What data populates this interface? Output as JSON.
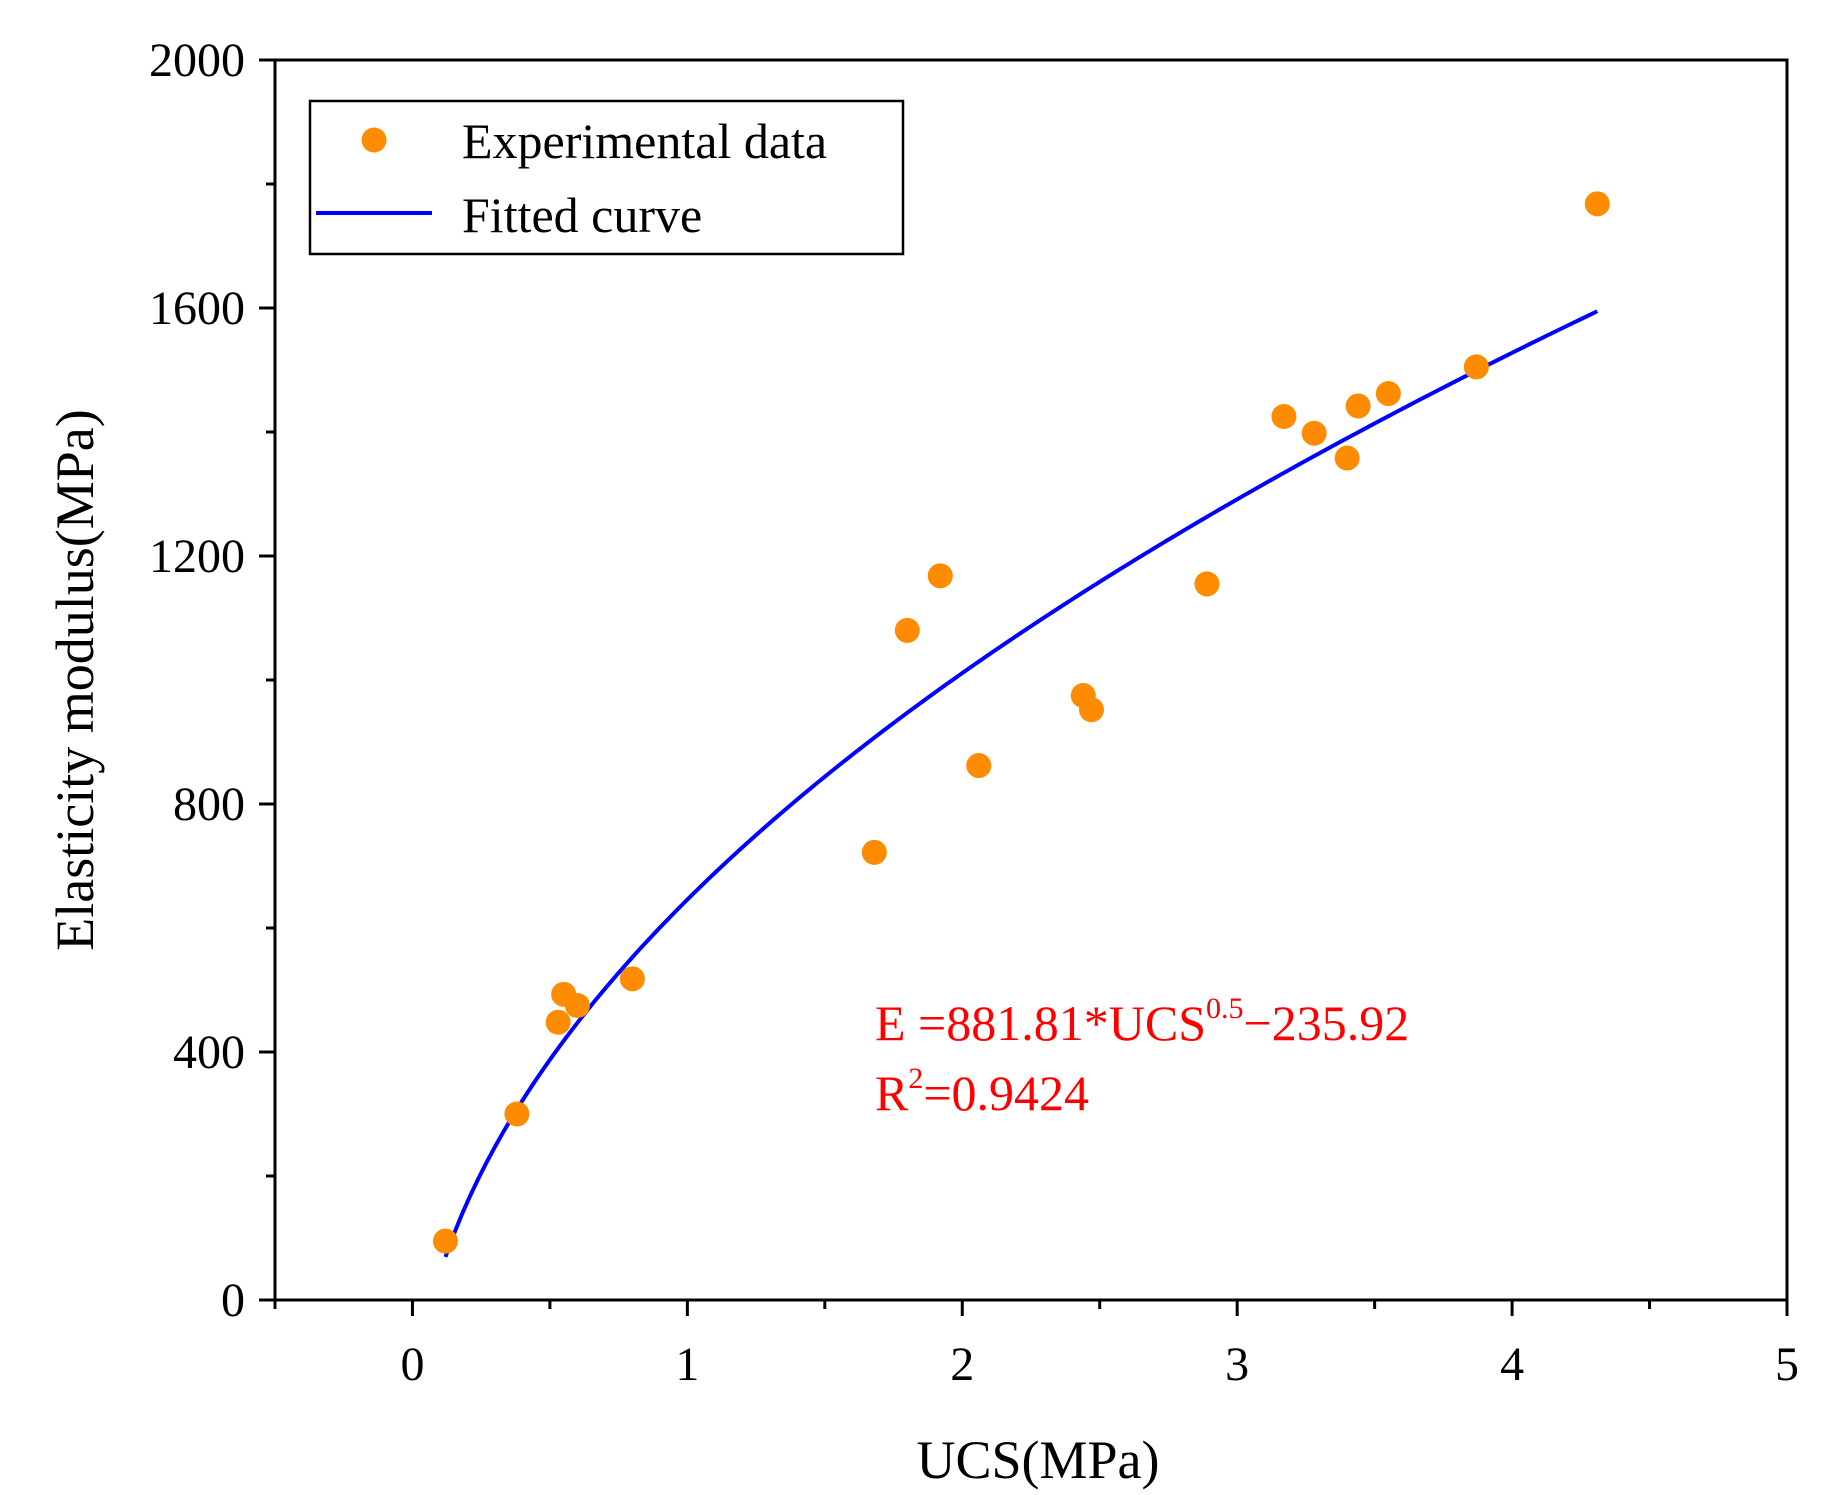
{
  "chart_data": {
    "type": "scatter",
    "title": "",
    "xlabel": "UCS(MPa)",
    "ylabel": "Elasticity modulus(MPa)",
    "xlim": [
      -0.5,
      5
    ],
    "ylim": [
      0,
      2000
    ],
    "x_ticks": [
      "0",
      "1",
      "2",
      "3",
      "4",
      "5"
    ],
    "x_tick_values": [
      0,
      1,
      2,
      3,
      4,
      5
    ],
    "y_ticks": [
      "0",
      "400",
      "800",
      "1200",
      "1600",
      "2000"
    ],
    "y_tick_values": [
      0,
      400,
      800,
      1200,
      1600,
      2000
    ],
    "x_minor_step": 0.5,
    "y_minor_step": 200,
    "grid": false,
    "legend_position": "top-left",
    "series": [
      {
        "name": "Experimental data",
        "kind": "scatter",
        "color": "#ff8c00",
        "points": [
          [
            0.12,
            95
          ],
          [
            0.38,
            300
          ],
          [
            0.53,
            448
          ],
          [
            0.55,
            493
          ],
          [
            0.6,
            475
          ],
          [
            0.8,
            518
          ],
          [
            1.68,
            722
          ],
          [
            1.8,
            1080
          ],
          [
            1.92,
            1168
          ],
          [
            2.06,
            862
          ],
          [
            2.44,
            975
          ],
          [
            2.47,
            952
          ],
          [
            2.89,
            1155
          ],
          [
            3.17,
            1425
          ],
          [
            3.28,
            1398
          ],
          [
            3.4,
            1358
          ],
          [
            3.44,
            1442
          ],
          [
            3.55,
            1462
          ],
          [
            3.87,
            1505
          ],
          [
            4.31,
            1768
          ]
        ]
      },
      {
        "name": "Fitted curve",
        "kind": "line",
        "color": "#0000ff",
        "equation": {
          "a": 881.81,
          "exponent": 0.5,
          "b": -235.92
        },
        "x_range": [
          0.12,
          4.31
        ]
      }
    ],
    "annotation": {
      "color": "#ff0000",
      "line1_prefix": "E =881.81*UCS",
      "line1_sup": "0.5",
      "line1_suffix": "−235.92",
      "line2_prefix": "R",
      "line2_sup": "2",
      "line2_suffix": "=0.9424"
    }
  }
}
